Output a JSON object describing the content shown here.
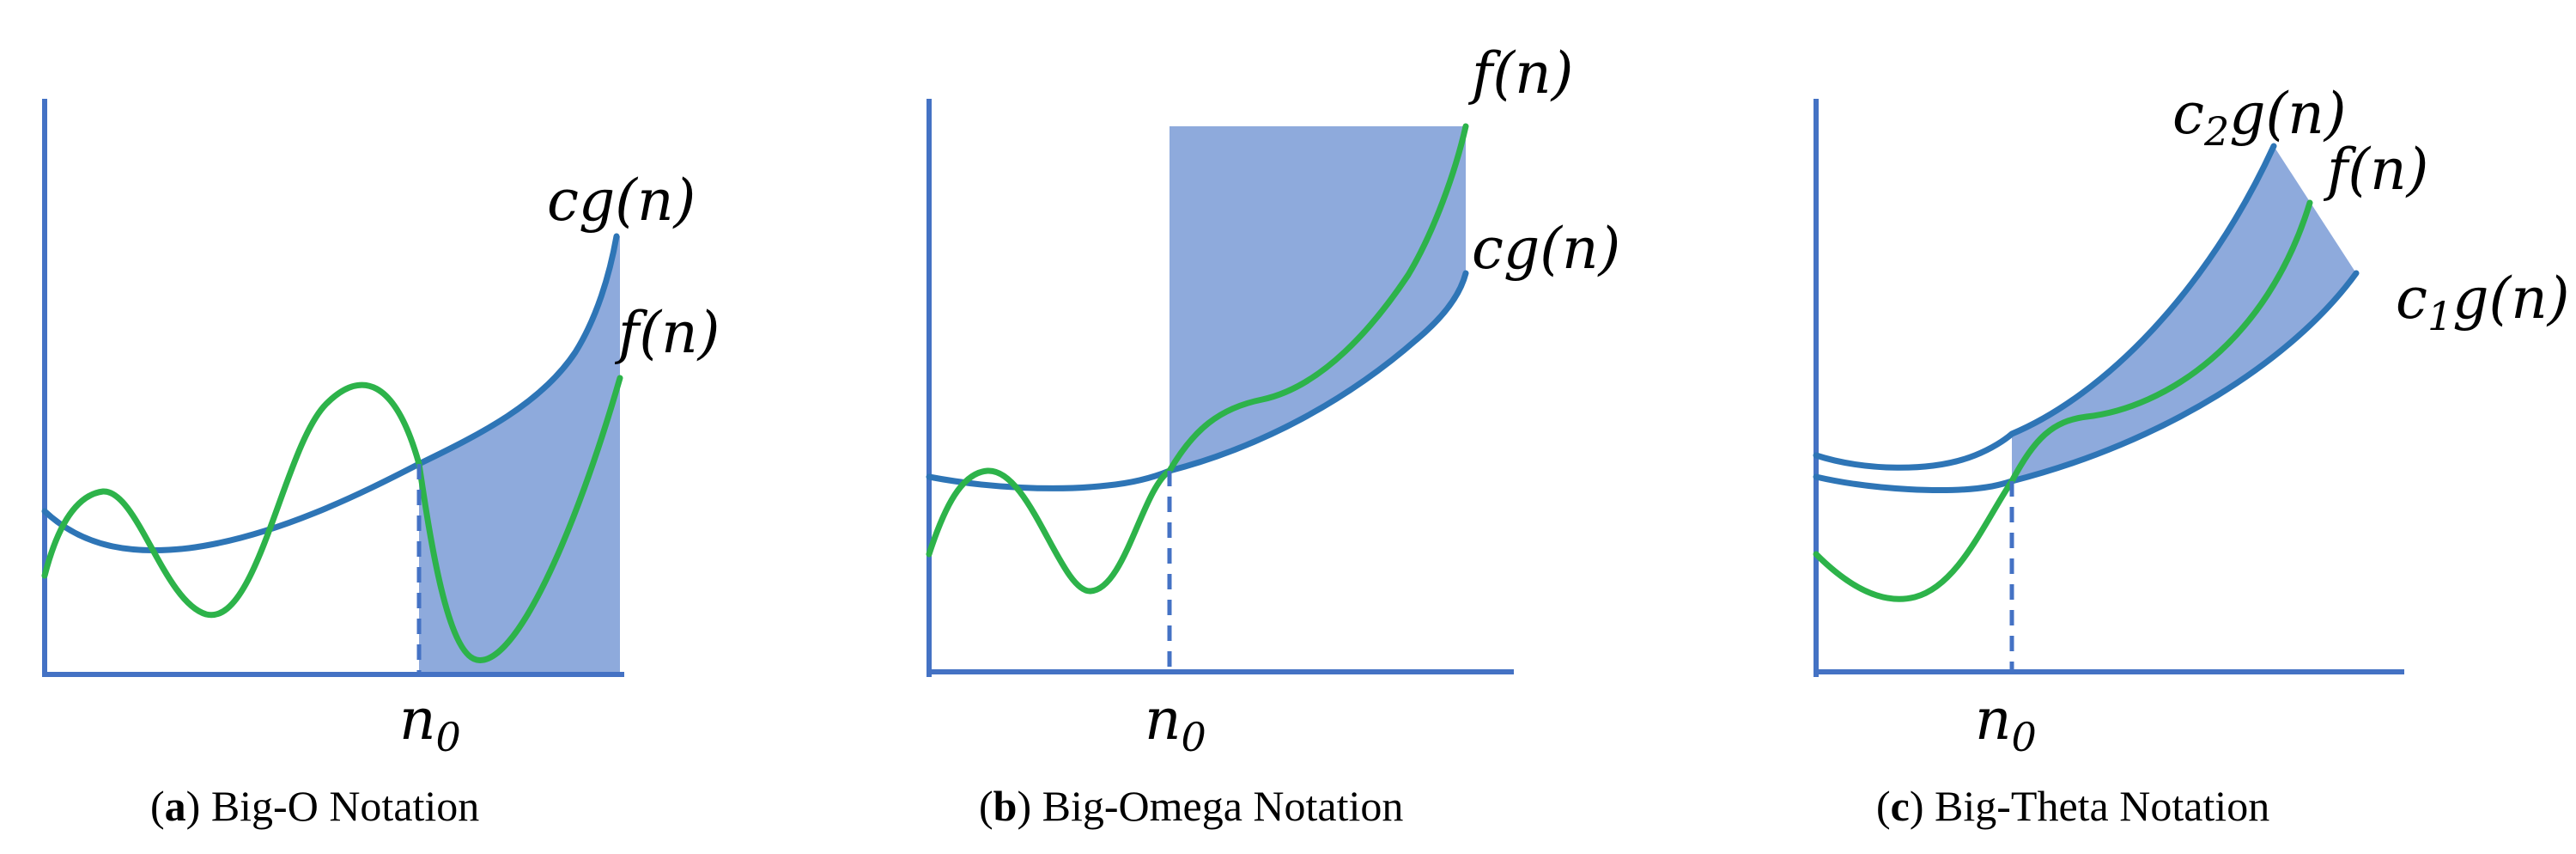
{
  "panels": [
    {
      "caption_letter": "a",
      "caption_text": " Big-O Notation",
      "labels": {
        "upper_bound": "cg(n)",
        "function": "f(n)",
        "threshold": "n",
        "threshold_sub": "0"
      }
    },
    {
      "caption_letter": "b",
      "caption_text": " Big-Omega Notation",
      "labels": {
        "function": "f(n)",
        "lower_bound": "cg(n)",
        "threshold": "n",
        "threshold_sub": "0"
      }
    },
    {
      "caption_letter": "c",
      "caption_text": " Big-Theta Notation",
      "labels": {
        "upper_coef": "c",
        "upper_coef_sub": "2",
        "upper_rest": "g(n)",
        "function": "f(n)",
        "lower_coef": "c",
        "lower_coef_sub": "1",
        "lower_rest": "g(n)",
        "threshold": "n",
        "threshold_sub": "0"
      }
    }
  ],
  "colors": {
    "axis": "#4472c4",
    "bound_curve": "#2e75b6",
    "function_curve": "#2db34a",
    "shaded_region": "#8eaadc"
  }
}
